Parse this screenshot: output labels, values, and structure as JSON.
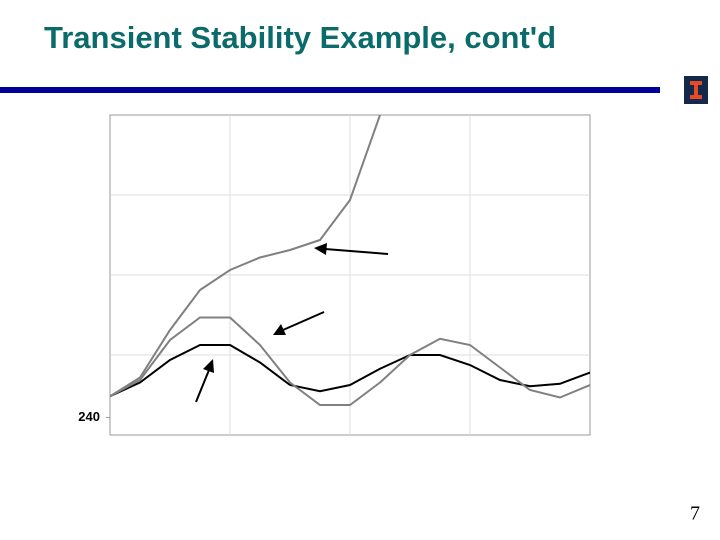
{
  "title": "Transient Stability Example, cont'd",
  "page_number": "7",
  "chart_data": {
    "type": "line",
    "x": [
      0,
      0.25,
      0.5,
      0.75,
      1,
      1.25,
      1.5,
      1.75,
      2,
      2.25,
      2.5,
      2.75,
      3,
      3.25,
      3.5,
      3.75,
      4
    ],
    "series": [
      {
        "color": "#000000",
        "values": [
          257,
          268,
          286,
          298,
          298,
          284,
          266,
          261,
          266,
          279,
          290,
          290,
          282,
          270,
          265,
          267,
          276
        ]
      },
      {
        "color": "#808080",
        "values": [
          257,
          270,
          302,
          320,
          320,
          298,
          268,
          250,
          250,
          268,
          290,
          303,
          298,
          280,
          262,
          256,
          266
        ]
      },
      {
        "color": "#808080",
        "values": [
          257,
          272,
          310,
          342,
          358,
          368,
          374,
          382,
          414,
          482,
          null,
          null,
          null,
          null,
          null,
          null,
          null
        ]
      }
    ],
    "xlim": [
      0,
      4
    ],
    "ylim": [
      226,
      482
    ],
    "yticks": [
      240
    ],
    "xgrid": [
      1,
      2,
      3
    ],
    "ygrid": [
      290,
      354,
      418
    ],
    "grid": true
  }
}
